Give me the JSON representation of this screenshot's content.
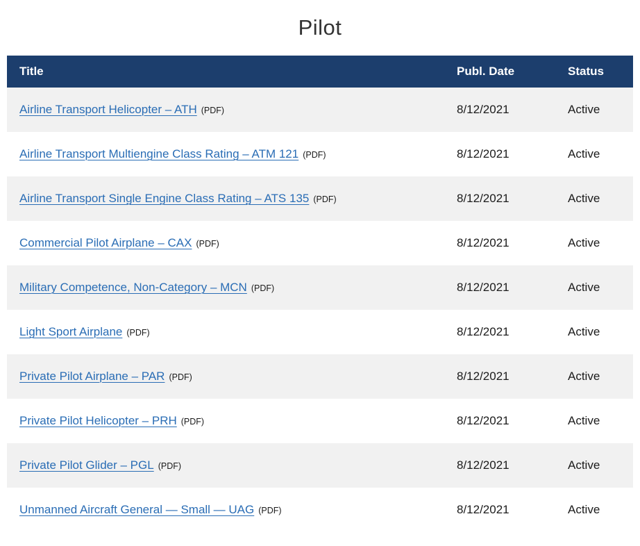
{
  "page": {
    "title": "Pilot"
  },
  "table": {
    "columns": [
      {
        "label": "Title"
      },
      {
        "label": "Publ. Date"
      },
      {
        "label": "Status"
      }
    ],
    "format_label": "(PDF)",
    "rows": [
      {
        "title": "Airline Transport Helicopter – ATH",
        "date": "8/12/2021",
        "status": "Active"
      },
      {
        "title": "Airline Transport Multiengine Class Rating – ATM 121",
        "date": "8/12/2021",
        "status": "Active"
      },
      {
        "title": "Airline Transport Single Engine Class Rating – ATS 135",
        "date": "8/12/2021",
        "status": "Active"
      },
      {
        "title": "Commercial Pilot Airplane – CAX",
        "date": "8/12/2021",
        "status": "Active"
      },
      {
        "title": "Military Competence, Non-Category – MCN",
        "date": "8/12/2021",
        "status": "Active"
      },
      {
        "title": "Light Sport Airplane",
        "date": "8/12/2021",
        "status": "Active"
      },
      {
        "title": "Private Pilot Airplane – PAR",
        "date": "8/12/2021",
        "status": "Active"
      },
      {
        "title": "Private Pilot Helicopter – PRH",
        "date": "8/12/2021",
        "status": "Active"
      },
      {
        "title": "Private Pilot Glider – PGL",
        "date": "8/12/2021",
        "status": "Active"
      },
      {
        "title": "Unmanned Aircraft General — Small — UAG",
        "date": "8/12/2021",
        "status": "Active"
      }
    ]
  },
  "colors": {
    "header_background": "#1c3e6d",
    "header_text": "#ffffff",
    "stripe_row_background": "#f1f1f1",
    "link": "#2a6db5",
    "body_text": "#1b1b1b",
    "page_title_text": "#333333"
  }
}
